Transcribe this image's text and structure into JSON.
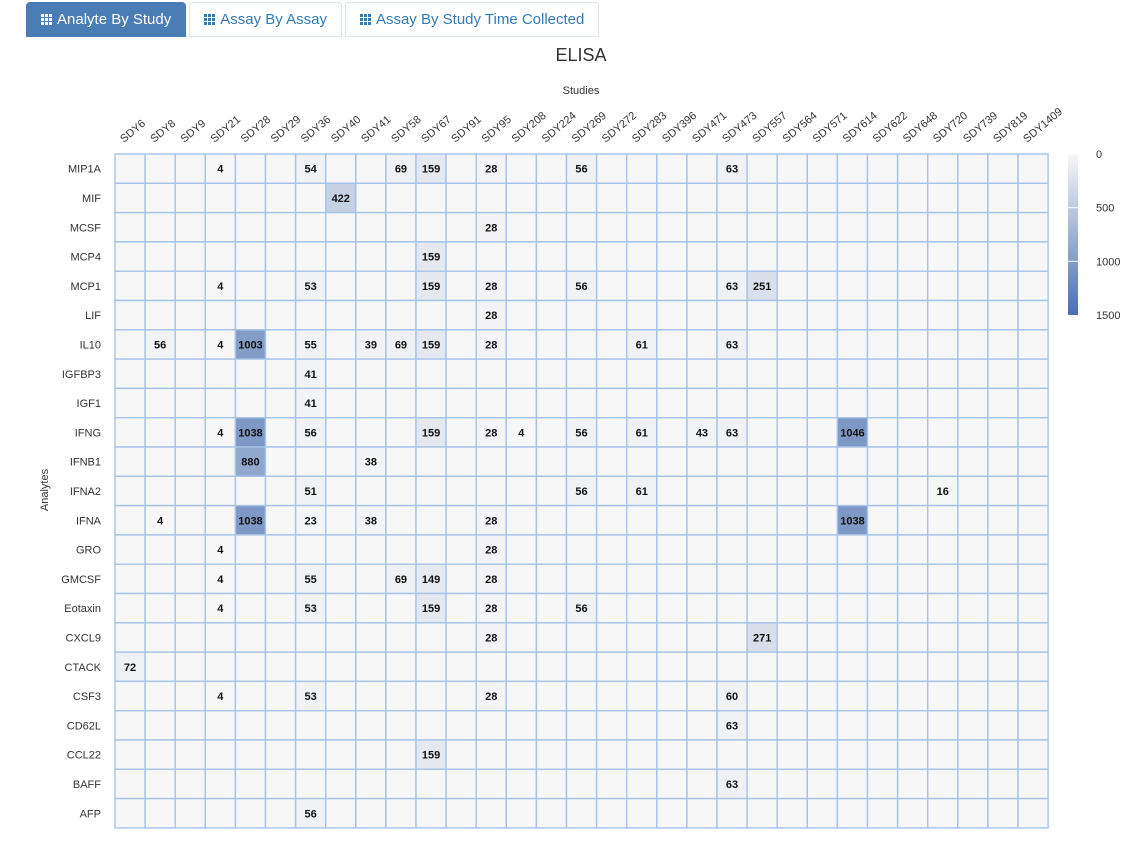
{
  "tabs": [
    {
      "label": "Analyte By Study",
      "icon": "grid-icon",
      "active": true
    },
    {
      "label": "Assay By Assay",
      "icon": "grid-icon",
      "active": false
    },
    {
      "label": "Assay By Study Time Collected",
      "icon": "grid-icon",
      "active": false
    }
  ],
  "colors": {
    "low": "#f7f7f7",
    "high": "#4a6fb0",
    "border": "#a6c3e8",
    "active_tab": "#4a7cb6",
    "link": "#337ab7"
  },
  "chart_data": {
    "type": "heatmap",
    "title": "ELISA",
    "xlabel": "Studies",
    "ylabel": "Analytes",
    "x_categories": [
      "SDY6",
      "SDY8",
      "SDY9",
      "SDY21",
      "SDY28",
      "SDY29",
      "SDY36",
      "SDY40",
      "SDY41",
      "SDY58",
      "SDY67",
      "SDY91",
      "SDY95",
      "SDY208",
      "SDY224",
      "SDY269",
      "SDY272",
      "SDY283",
      "SDY396",
      "SDY471",
      "SDY473",
      "SDY557",
      "SDY564",
      "SDY571",
      "SDY614",
      "SDY622",
      "SDY648",
      "SDY720",
      "SDY739",
      "SDY819",
      "SDY1409"
    ],
    "y_categories": [
      "MIP1A",
      "MIF",
      "MCSF",
      "MCP4",
      "MCP1",
      "LIF",
      "IL10",
      "IGFBP3",
      "IGF1",
      "IFNG",
      "IFNB1",
      "IFNA2",
      "IFNA",
      "GRO",
      "GMCSF",
      "Eotaxin",
      "CXCL9",
      "CTACK",
      "CSF3",
      "CD62L",
      "CCL22",
      "BAFF",
      "AFP"
    ],
    "cells": [
      {
        "analyte": "MIP1A",
        "study": "SDY21",
        "value": 4
      },
      {
        "analyte": "MIP1A",
        "study": "SDY36",
        "value": 54
      },
      {
        "analyte": "MIP1A",
        "study": "SDY58",
        "value": 69
      },
      {
        "analyte": "MIP1A",
        "study": "SDY67",
        "value": 159
      },
      {
        "analyte": "MIP1A",
        "study": "SDY95",
        "value": 28
      },
      {
        "analyte": "MIP1A",
        "study": "SDY269",
        "value": 56
      },
      {
        "analyte": "MIP1A",
        "study": "SDY473",
        "value": 63
      },
      {
        "analyte": "MIF",
        "study": "SDY40",
        "value": 422
      },
      {
        "analyte": "MCSF",
        "study": "SDY95",
        "value": 28
      },
      {
        "analyte": "MCP4",
        "study": "SDY67",
        "value": 159
      },
      {
        "analyte": "MCP1",
        "study": "SDY21",
        "value": 4
      },
      {
        "analyte": "MCP1",
        "study": "SDY36",
        "value": 53
      },
      {
        "analyte": "MCP1",
        "study": "SDY67",
        "value": 159
      },
      {
        "analyte": "MCP1",
        "study": "SDY95",
        "value": 28
      },
      {
        "analyte": "MCP1",
        "study": "SDY269",
        "value": 56
      },
      {
        "analyte": "MCP1",
        "study": "SDY473",
        "value": 63
      },
      {
        "analyte": "MCP1",
        "study": "SDY557",
        "value": 251
      },
      {
        "analyte": "LIF",
        "study": "SDY95",
        "value": 28
      },
      {
        "analyte": "IL10",
        "study": "SDY8",
        "value": 56
      },
      {
        "analyte": "IL10",
        "study": "SDY21",
        "value": 4
      },
      {
        "analyte": "IL10",
        "study": "SDY28",
        "value": 1003
      },
      {
        "analyte": "IL10",
        "study": "SDY36",
        "value": 55
      },
      {
        "analyte": "IL10",
        "study": "SDY41",
        "value": 39
      },
      {
        "analyte": "IL10",
        "study": "SDY58",
        "value": 69
      },
      {
        "analyte": "IL10",
        "study": "SDY67",
        "value": 159
      },
      {
        "analyte": "IL10",
        "study": "SDY95",
        "value": 28
      },
      {
        "analyte": "IL10",
        "study": "SDY283",
        "value": 61
      },
      {
        "analyte": "IL10",
        "study": "SDY473",
        "value": 63
      },
      {
        "analyte": "IGFBP3",
        "study": "SDY36",
        "value": 41
      },
      {
        "analyte": "IGF1",
        "study": "SDY36",
        "value": 41
      },
      {
        "analyte": "IFNG",
        "study": "SDY21",
        "value": 4
      },
      {
        "analyte": "IFNG",
        "study": "SDY28",
        "value": 1038
      },
      {
        "analyte": "IFNG",
        "study": "SDY36",
        "value": 56
      },
      {
        "analyte": "IFNG",
        "study": "SDY67",
        "value": 159
      },
      {
        "analyte": "IFNG",
        "study": "SDY95",
        "value": 28
      },
      {
        "analyte": "IFNG",
        "study": "SDY208",
        "value": 4
      },
      {
        "analyte": "IFNG",
        "study": "SDY269",
        "value": 56
      },
      {
        "analyte": "IFNG",
        "study": "SDY283",
        "value": 61
      },
      {
        "analyte": "IFNG",
        "study": "SDY471",
        "value": 43
      },
      {
        "analyte": "IFNG",
        "study": "SDY473",
        "value": 63
      },
      {
        "analyte": "IFNG",
        "study": "SDY614",
        "value": 1046
      },
      {
        "analyte": "IFNB1",
        "study": "SDY28",
        "value": 880
      },
      {
        "analyte": "IFNB1",
        "study": "SDY41",
        "value": 38
      },
      {
        "analyte": "IFNA2",
        "study": "SDY36",
        "value": 51
      },
      {
        "analyte": "IFNA2",
        "study": "SDY269",
        "value": 56
      },
      {
        "analyte": "IFNA2",
        "study": "SDY283",
        "value": 61
      },
      {
        "analyte": "IFNA2",
        "study": "SDY720",
        "value": 16
      },
      {
        "analyte": "IFNA",
        "study": "SDY8",
        "value": 4
      },
      {
        "analyte": "IFNA",
        "study": "SDY28",
        "value": 1038
      },
      {
        "analyte": "IFNA",
        "study": "SDY36",
        "value": 23
      },
      {
        "analyte": "IFNA",
        "study": "SDY41",
        "value": 38
      },
      {
        "analyte": "IFNA",
        "study": "SDY95",
        "value": 28
      },
      {
        "analyte": "IFNA",
        "study": "SDY614",
        "value": 1038
      },
      {
        "analyte": "GRO",
        "study": "SDY21",
        "value": 4
      },
      {
        "analyte": "GRO",
        "study": "SDY95",
        "value": 28
      },
      {
        "analyte": "GMCSF",
        "study": "SDY21",
        "value": 4
      },
      {
        "analyte": "GMCSF",
        "study": "SDY36",
        "value": 55
      },
      {
        "analyte": "GMCSF",
        "study": "SDY58",
        "value": 69
      },
      {
        "analyte": "GMCSF",
        "study": "SDY67",
        "value": 149
      },
      {
        "analyte": "GMCSF",
        "study": "SDY95",
        "value": 28
      },
      {
        "analyte": "Eotaxin",
        "study": "SDY21",
        "value": 4
      },
      {
        "analyte": "Eotaxin",
        "study": "SDY36",
        "value": 53
      },
      {
        "analyte": "Eotaxin",
        "study": "SDY67",
        "value": 159
      },
      {
        "analyte": "Eotaxin",
        "study": "SDY95",
        "value": 28
      },
      {
        "analyte": "Eotaxin",
        "study": "SDY269",
        "value": 56
      },
      {
        "analyte": "CXCL9",
        "study": "SDY95",
        "value": 28
      },
      {
        "analyte": "CXCL9",
        "study": "SDY557",
        "value": 271
      },
      {
        "analyte": "CTACK",
        "study": "SDY6",
        "value": 72
      },
      {
        "analyte": "CSF3",
        "study": "SDY21",
        "value": 4
      },
      {
        "analyte": "CSF3",
        "study": "SDY36",
        "value": 53
      },
      {
        "analyte": "CSF3",
        "study": "SDY95",
        "value": 28
      },
      {
        "analyte": "CSF3",
        "study": "SDY473",
        "value": 60
      },
      {
        "analyte": "CD62L",
        "study": "SDY473",
        "value": 63
      },
      {
        "analyte": "CCL22",
        "study": "SDY67",
        "value": 159
      },
      {
        "analyte": "BAFF",
        "study": "SDY473",
        "value": 63
      },
      {
        "analyte": "AFP",
        "study": "SDY36",
        "value": 56
      }
    ],
    "legend": {
      "ticks": [
        0,
        500,
        1000,
        1500
      ],
      "range": [
        0,
        1500
      ],
      "placement": "right"
    },
    "grid": true
  }
}
